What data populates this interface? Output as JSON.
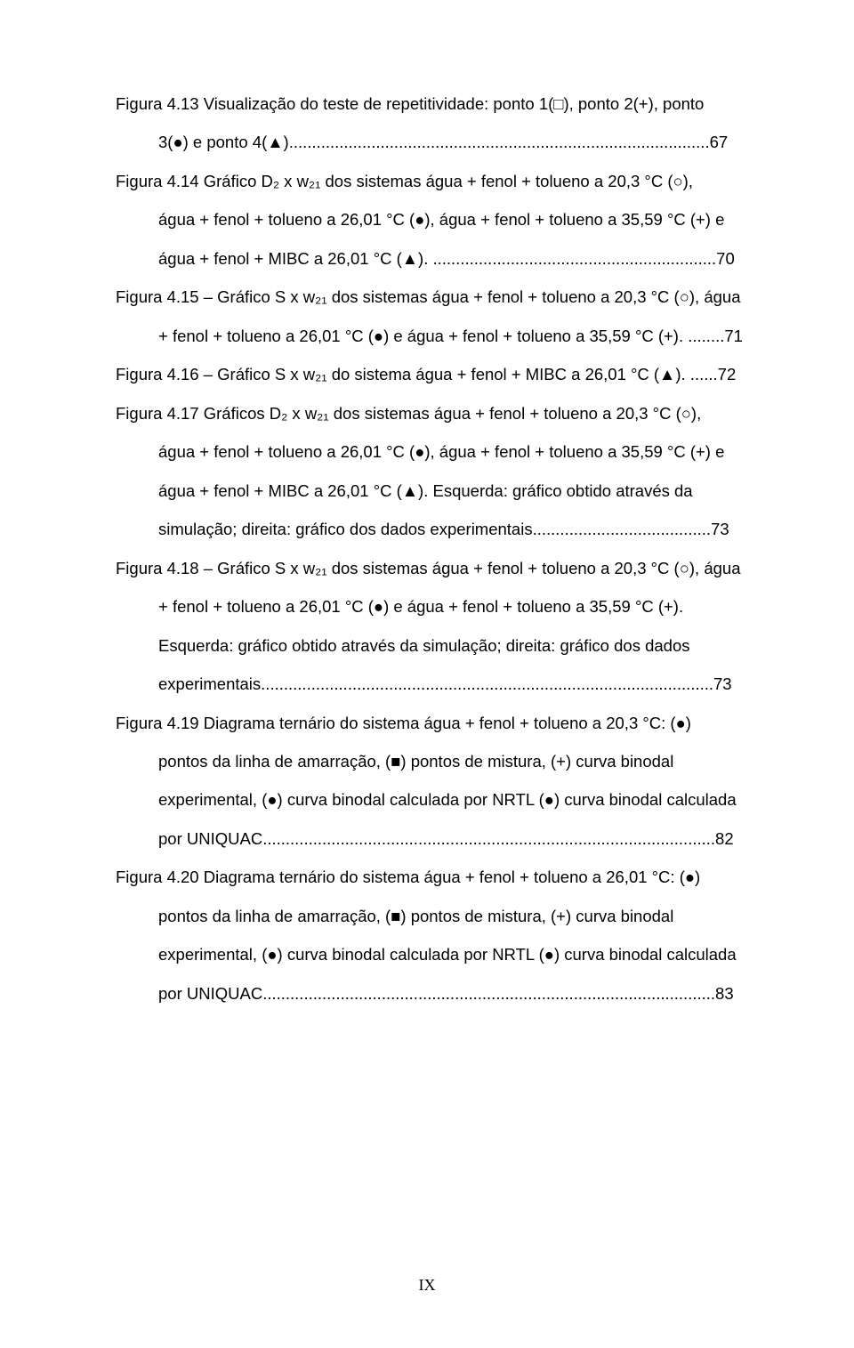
{
  "entries": [
    {
      "first": "Figura 4.13 Visualização do teste de repetitividade: ponto 1(□), ponto 2(+), ponto",
      "rest": [
        "3(●) e ponto 4(▲)............................................................................................67"
      ]
    },
    {
      "first": "Figura 4.14 Gráfico D₂ x w₂₁ dos sistemas água + fenol + tolueno a 20,3 °C (○),",
      "rest": [
        "água + fenol + tolueno a 26,01 °C (●), água + fenol + tolueno a 35,59 °C (+) e",
        "água + fenol + MIBC a 26,01 °C (▲). ..............................................................70"
      ]
    },
    {
      "first": "Figura 4.15 – Gráfico S x w₂₁ dos sistemas água + fenol + tolueno a 20,3 °C (○), água",
      "rest": [
        "+ fenol + tolueno a 26,01 °C (●) e água + fenol + tolueno a 35,59 °C (+). ........71"
      ]
    },
    {
      "first": "Figura 4.16 – Gráfico S x w₂₁ do sistema água + fenol + MIBC a 26,01 °C (▲). ......72",
      "rest": []
    },
    {
      "first": "Figura 4.17 Gráficos D₂ x w₂₁ dos sistemas água + fenol + tolueno a 20,3 °C (○),",
      "rest": [
        "água + fenol + tolueno a 26,01 °C (●), água + fenol + tolueno a 35,59 °C (+) e",
        "água + fenol + MIBC a 26,01 °C (▲). Esquerda: gráfico obtido através da",
        "simulação; direita: gráfico dos dados experimentais.......................................73"
      ]
    },
    {
      "first": "Figura 4.18 – Gráfico S x w₂₁ dos sistemas água + fenol + tolueno a 20,3 °C (○), água",
      "rest": [
        "+ fenol + tolueno a 26,01 °C (●) e água + fenol + tolueno a 35,59 °C (+).",
        "Esquerda: gráfico obtido através da simulação; direita: gráfico dos dados",
        "experimentais...................................................................................................73"
      ]
    },
    {
      "first": "Figura 4.19 Diagrama ternário do sistema água + fenol + tolueno a 20,3 °C: (●)",
      "rest": [
        "pontos da linha de amarração, (■) pontos de mistura, (+) curva binodal",
        "experimental, (●) curva binodal calculada por NRTL (●) curva binodal calculada",
        "por UNIQUAC...................................................................................................82"
      ]
    },
    {
      "first": "Figura 4.20 Diagrama ternário do sistema água + fenol + tolueno a 26,01 °C: (●)",
      "rest": [
        "pontos da linha de amarração, (■) pontos de mistura, (+) curva binodal",
        "experimental, (●) curva binodal calculada por NRTL (●) curva binodal calculada",
        "por UNIQUAC...................................................................................................83"
      ]
    }
  ],
  "pageNumber": "IX"
}
